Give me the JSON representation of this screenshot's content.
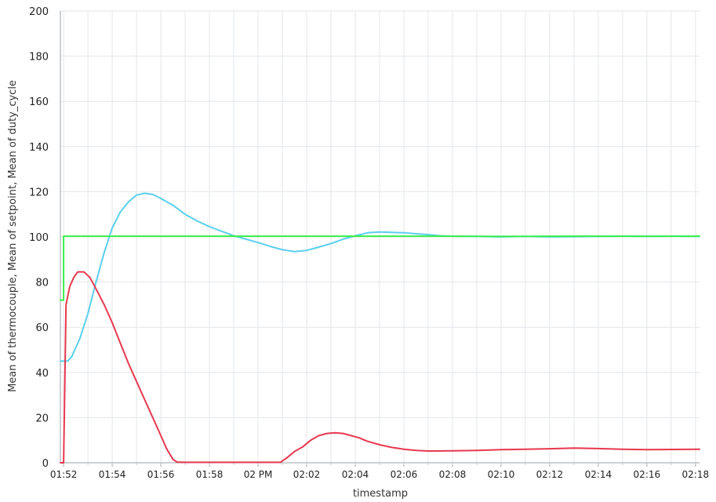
{
  "chart_data": {
    "type": "line",
    "xlabel": "timestamp",
    "ylabel": "Mean of thermocouple, Mean of setpoint, Mean of duty_cycle",
    "ylim": [
      0,
      200
    ],
    "yticks": [
      0,
      20,
      40,
      60,
      80,
      100,
      120,
      140,
      160,
      180,
      200
    ],
    "xlim": [
      "13:51:52",
      "14:18:10"
    ],
    "xticks": [
      {
        "t": "13:52",
        "label": "01:52"
      },
      {
        "t": "13:54",
        "label": "01:54"
      },
      {
        "t": "13:56",
        "label": "01:56"
      },
      {
        "t": "13:58",
        "label": "01:58"
      },
      {
        "t": "14:00",
        "label": "02 PM"
      },
      {
        "t": "14:02",
        "label": "02:02"
      },
      {
        "t": "14:04",
        "label": "02:04"
      },
      {
        "t": "14:06",
        "label": "02:06"
      },
      {
        "t": "14:08",
        "label": "02:08"
      },
      {
        "t": "14:10",
        "label": "02:10"
      },
      {
        "t": "14:12",
        "label": "02:12"
      },
      {
        "t": "14:14",
        "label": "02:14"
      },
      {
        "t": "14:16",
        "label": "02:16"
      },
      {
        "t": "14:18",
        "label": "02:18"
      }
    ],
    "grid": true,
    "legend": "none",
    "series": [
      {
        "color": "#5bcfef",
        "points": [
          [
            "13:51:52",
            45
          ],
          [
            "13:52:10",
            45
          ],
          [
            "13:52:20",
            47
          ],
          [
            "13:52:40",
            55
          ],
          [
            "13:53:00",
            66
          ],
          [
            "13:53:20",
            80
          ],
          [
            "13:53:40",
            93
          ],
          [
            "13:54:00",
            104
          ],
          [
            "13:54:20",
            111
          ],
          [
            "13:54:40",
            115.5
          ],
          [
            "13:55:00",
            118.5
          ],
          [
            "13:55:20",
            119.3
          ],
          [
            "13:55:40",
            118.8
          ],
          [
            "13:56:00",
            117
          ],
          [
            "13:56:30",
            114
          ],
          [
            "13:57:00",
            110
          ],
          [
            "13:57:30",
            107
          ],
          [
            "13:58:00",
            104.5
          ],
          [
            "13:58:30",
            102.5
          ],
          [
            "13:59:00",
            100.5
          ],
          [
            "13:59:30",
            99
          ],
          [
            "14:00:00",
            97.5
          ],
          [
            "14:00:30",
            95.8
          ],
          [
            "14:01:00",
            94.3
          ],
          [
            "14:01:30",
            93.5
          ],
          [
            "14:02:00",
            94
          ],
          [
            "14:02:30",
            95.5
          ],
          [
            "14:03:00",
            97
          ],
          [
            "14:03:30",
            99
          ],
          [
            "14:04:00",
            100.5
          ],
          [
            "14:04:30",
            101.8
          ],
          [
            "14:05:00",
            102.2
          ],
          [
            "14:05:30",
            102
          ],
          [
            "14:06:00",
            101.8
          ],
          [
            "14:06:30",
            101.4
          ],
          [
            "14:07:00",
            101
          ],
          [
            "14:07:30",
            100.5
          ],
          [
            "14:08:00",
            100.3
          ],
          [
            "14:09:00",
            100.2
          ],
          [
            "14:10:00",
            100
          ],
          [
            "14:11:00",
            100.2
          ],
          [
            "14:12:00",
            100
          ],
          [
            "14:13:00",
            100.1
          ],
          [
            "14:14:00",
            100.2
          ],
          [
            "14:15:00",
            100.3
          ],
          [
            "14:16:00",
            100.2
          ],
          [
            "14:17:00",
            100.3
          ],
          [
            "14:18:10",
            100.2
          ]
        ]
      },
      {
        "color": "#38ef49",
        "points": [
          [
            "13:51:52",
            72
          ],
          [
            "13:52:00",
            72
          ],
          [
            "13:52:00",
            100.3
          ],
          [
            "13:55:00",
            100.3
          ],
          [
            "14:00:00",
            100.3
          ],
          [
            "14:05:00",
            100.3
          ],
          [
            "14:08:00",
            100.3
          ],
          [
            "14:10:00",
            100.2
          ],
          [
            "14:13:00",
            100.3
          ],
          [
            "14:16:00",
            100.3
          ],
          [
            "14:18:10",
            100.3
          ]
        ]
      },
      {
        "color": "#e8384f",
        "points": [
          [
            "13:51:52",
            0
          ],
          [
            "13:52:00",
            0
          ],
          [
            "13:52:06",
            70
          ],
          [
            "13:52:15",
            78
          ],
          [
            "13:52:25",
            82
          ],
          [
            "13:52:35",
            84.5
          ],
          [
            "13:52:50",
            84.5
          ],
          [
            "13:53:05",
            82
          ],
          [
            "13:53:20",
            77
          ],
          [
            "13:53:40",
            70
          ],
          [
            "13:54:00",
            62
          ],
          [
            "13:54:20",
            53
          ],
          [
            "13:54:40",
            44
          ],
          [
            "13:55:00",
            36
          ],
          [
            "13:55:20",
            28
          ],
          [
            "13:55:40",
            20
          ],
          [
            "13:56:00",
            12
          ],
          [
            "13:56:15",
            6
          ],
          [
            "13:56:30",
            1.5
          ],
          [
            "13:56:40",
            0.3
          ],
          [
            "13:57:00",
            0.2
          ],
          [
            "13:58:00",
            0.2
          ],
          [
            "13:59:00",
            0.2
          ],
          [
            "14:00:00",
            0.2
          ],
          [
            "14:00:55",
            0.2
          ],
          [
            "14:01:10",
            2
          ],
          [
            "14:01:30",
            5
          ],
          [
            "14:01:50",
            7
          ],
          [
            "14:02:10",
            10
          ],
          [
            "14:02:30",
            12
          ],
          [
            "14:02:50",
            13
          ],
          [
            "14:03:10",
            13.3
          ],
          [
            "14:03:30",
            13
          ],
          [
            "14:03:50",
            12
          ],
          [
            "14:04:10",
            11
          ],
          [
            "14:04:30",
            9.5
          ],
          [
            "14:05:00",
            8
          ],
          [
            "14:05:30",
            6.8
          ],
          [
            "14:06:00",
            6
          ],
          [
            "14:06:30",
            5.5
          ],
          [
            "14:07:00",
            5.2
          ],
          [
            "14:08:00",
            5.3
          ],
          [
            "14:09:00",
            5.5
          ],
          [
            "14:10:00",
            5.8
          ],
          [
            "14:11:00",
            6
          ],
          [
            "14:12:00",
            6.2
          ],
          [
            "14:13:00",
            6.5
          ],
          [
            "14:14:00",
            6.3
          ],
          [
            "14:15:00",
            6
          ],
          [
            "14:16:00",
            5.8
          ],
          [
            "14:17:00",
            5.9
          ],
          [
            "14:18:10",
            6
          ]
        ]
      }
    ]
  }
}
